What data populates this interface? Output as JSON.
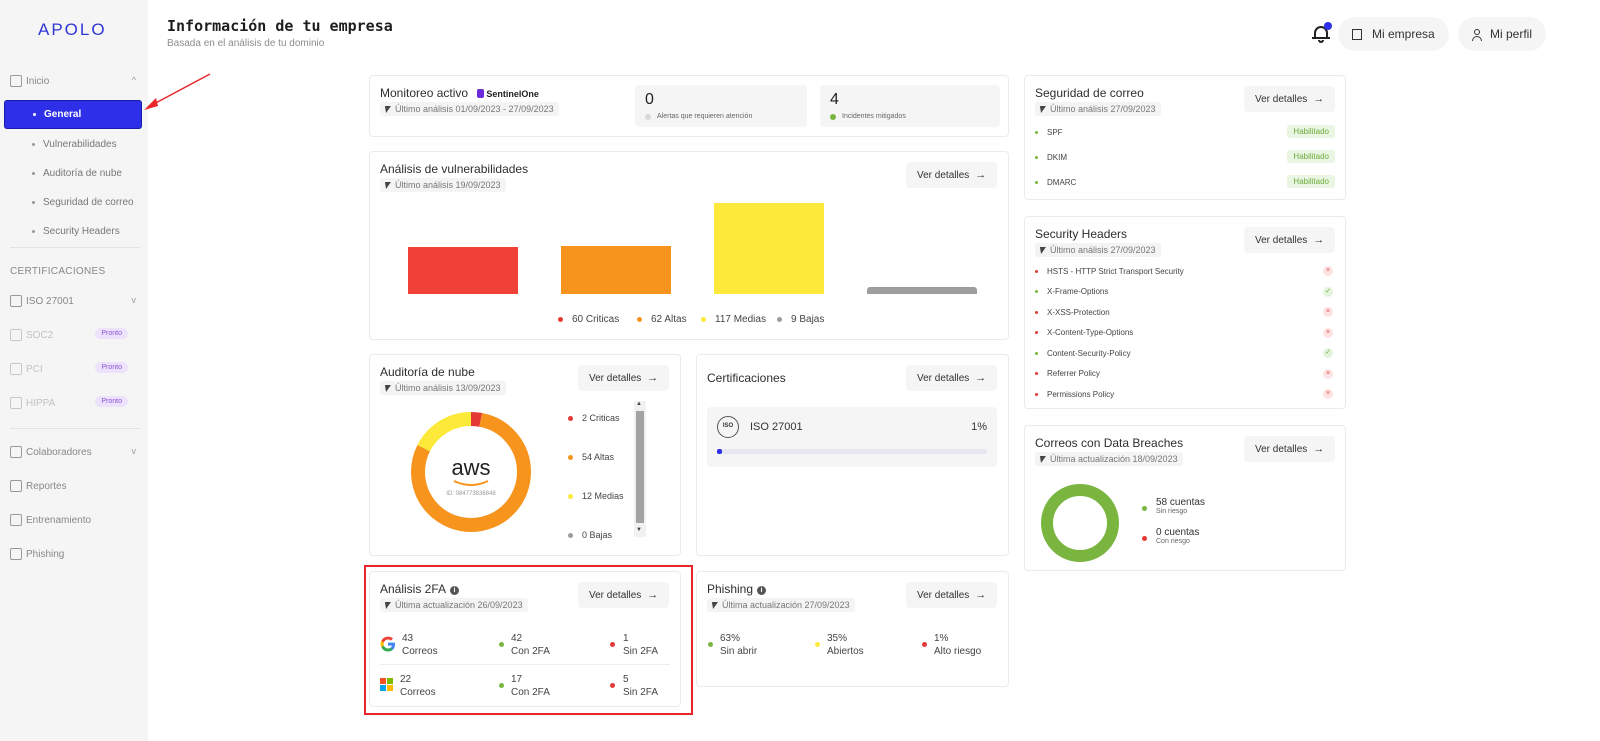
{
  "app": {
    "logo": "APOLO"
  },
  "header": {
    "title": "Información de tu empresa",
    "subtitle": "Basada en el análisis de tu dominio",
    "company_btn": "Mi empresa",
    "profile_btn": "Mi perfil"
  },
  "sidebar": {
    "inicio": "Inicio",
    "items": [
      "General",
      "Vulnerabilidades",
      "Auditoría de nube",
      "Seguridad de correo",
      "Security Headers"
    ],
    "cert_section": "CERTIFICACIONES",
    "iso": "ISO 27001",
    "soc2": "SOC2",
    "pci": "PCI",
    "hippa": "HIPPA",
    "soon": "Pronto",
    "colaboradores": "Colaboradores",
    "reportes": "Reportes",
    "entrenamiento": "Entrenamiento",
    "phishing": "Phishing"
  },
  "common": {
    "ver_detalles": "Ver detalles",
    "arrow": "→"
  },
  "monitoreo": {
    "title": "Monitoreo activo",
    "brand": "SentinelOne",
    "sub": "Último análisis 01/09/2023 - 27/09/2023",
    "alerts_num": "0",
    "alerts_label": "Alertas que requieren atención",
    "incidents_num": "4",
    "incidents_label": "Incidentes mitigados"
  },
  "vuln": {
    "title": "Análisis de vulnerabilidades",
    "sub": "Último análisis 19/09/2023",
    "legend": [
      "60 Criticas",
      "62 Altas",
      "117 Medias",
      "9 Bajas"
    ]
  },
  "chart_data": {
    "type": "bar",
    "categories": [
      "Criticas",
      "Altas",
      "Medias",
      "Bajas"
    ],
    "values": [
      60,
      62,
      117,
      9
    ],
    "colors": [
      "#ef4136",
      "#f7941d",
      "#fde93a",
      "#9d9d9d"
    ]
  },
  "cloud": {
    "title": "Auditoría de nube",
    "sub": "Último análisis 13/09/2023",
    "aws": "aws",
    "aws_id": "ID: 084773836848",
    "legend": [
      "2 Criticas",
      "54 Altas",
      "12 Medias",
      "0 Bajas"
    ],
    "values": [
      2,
      54,
      12,
      0
    ]
  },
  "certs": {
    "title": "Certificaciones",
    "iso_name": "ISO 27001",
    "iso_pct": "1%",
    "iso_progress": 1,
    "iso_logo": "ISO"
  },
  "tfa": {
    "title": "Análisis 2FA",
    "sub": "Última actualización 26/09/2023",
    "google": {
      "total": "43",
      "total_label": "Correos",
      "con": "42",
      "con_label": "Con 2FA",
      "sin": "1",
      "sin_label": "Sin 2FA"
    },
    "microsoft": {
      "total": "22",
      "total_label": "Correos",
      "con": "17",
      "con_label": "Con 2FA",
      "sin": "5",
      "sin_label": "Sin 2FA"
    }
  },
  "phishing": {
    "title": "Phishing",
    "sub": "Última actualización 27/09/2023",
    "a_pct": "63%",
    "a_label": "Sin abrir",
    "b_pct": "35%",
    "b_label": "Abiertos",
    "c_pct": "1%",
    "c_label": "Alto riesgo"
  },
  "mail": {
    "title": "Seguridad de correo",
    "sub": "Último análisis 27/09/2023",
    "rows": [
      "SPF",
      "DKIM",
      "DMARC"
    ],
    "status": "Habilitado"
  },
  "headers": {
    "title": "Security Headers",
    "sub": "Último análisis 27/09/2023",
    "rows": [
      "HSTS - HTTP Strict Transport Security",
      "X-Frame-Options",
      "X-XSS-Protection",
      "X-Content-Type-Options",
      "Content-Security-Policy",
      "Referrer Policy",
      "Permissions Policy"
    ],
    "ok": [
      false,
      true,
      false,
      false,
      true,
      false,
      false
    ]
  },
  "breaches": {
    "title": "Correos con Data Breaches",
    "sub": "Última actualización 18/09/2023",
    "safe": "58 cuentas",
    "safe_label": "Sin riesgo",
    "risk": "0 cuentas",
    "risk_label": "Con riesgo",
    "values": [
      58,
      0
    ]
  }
}
